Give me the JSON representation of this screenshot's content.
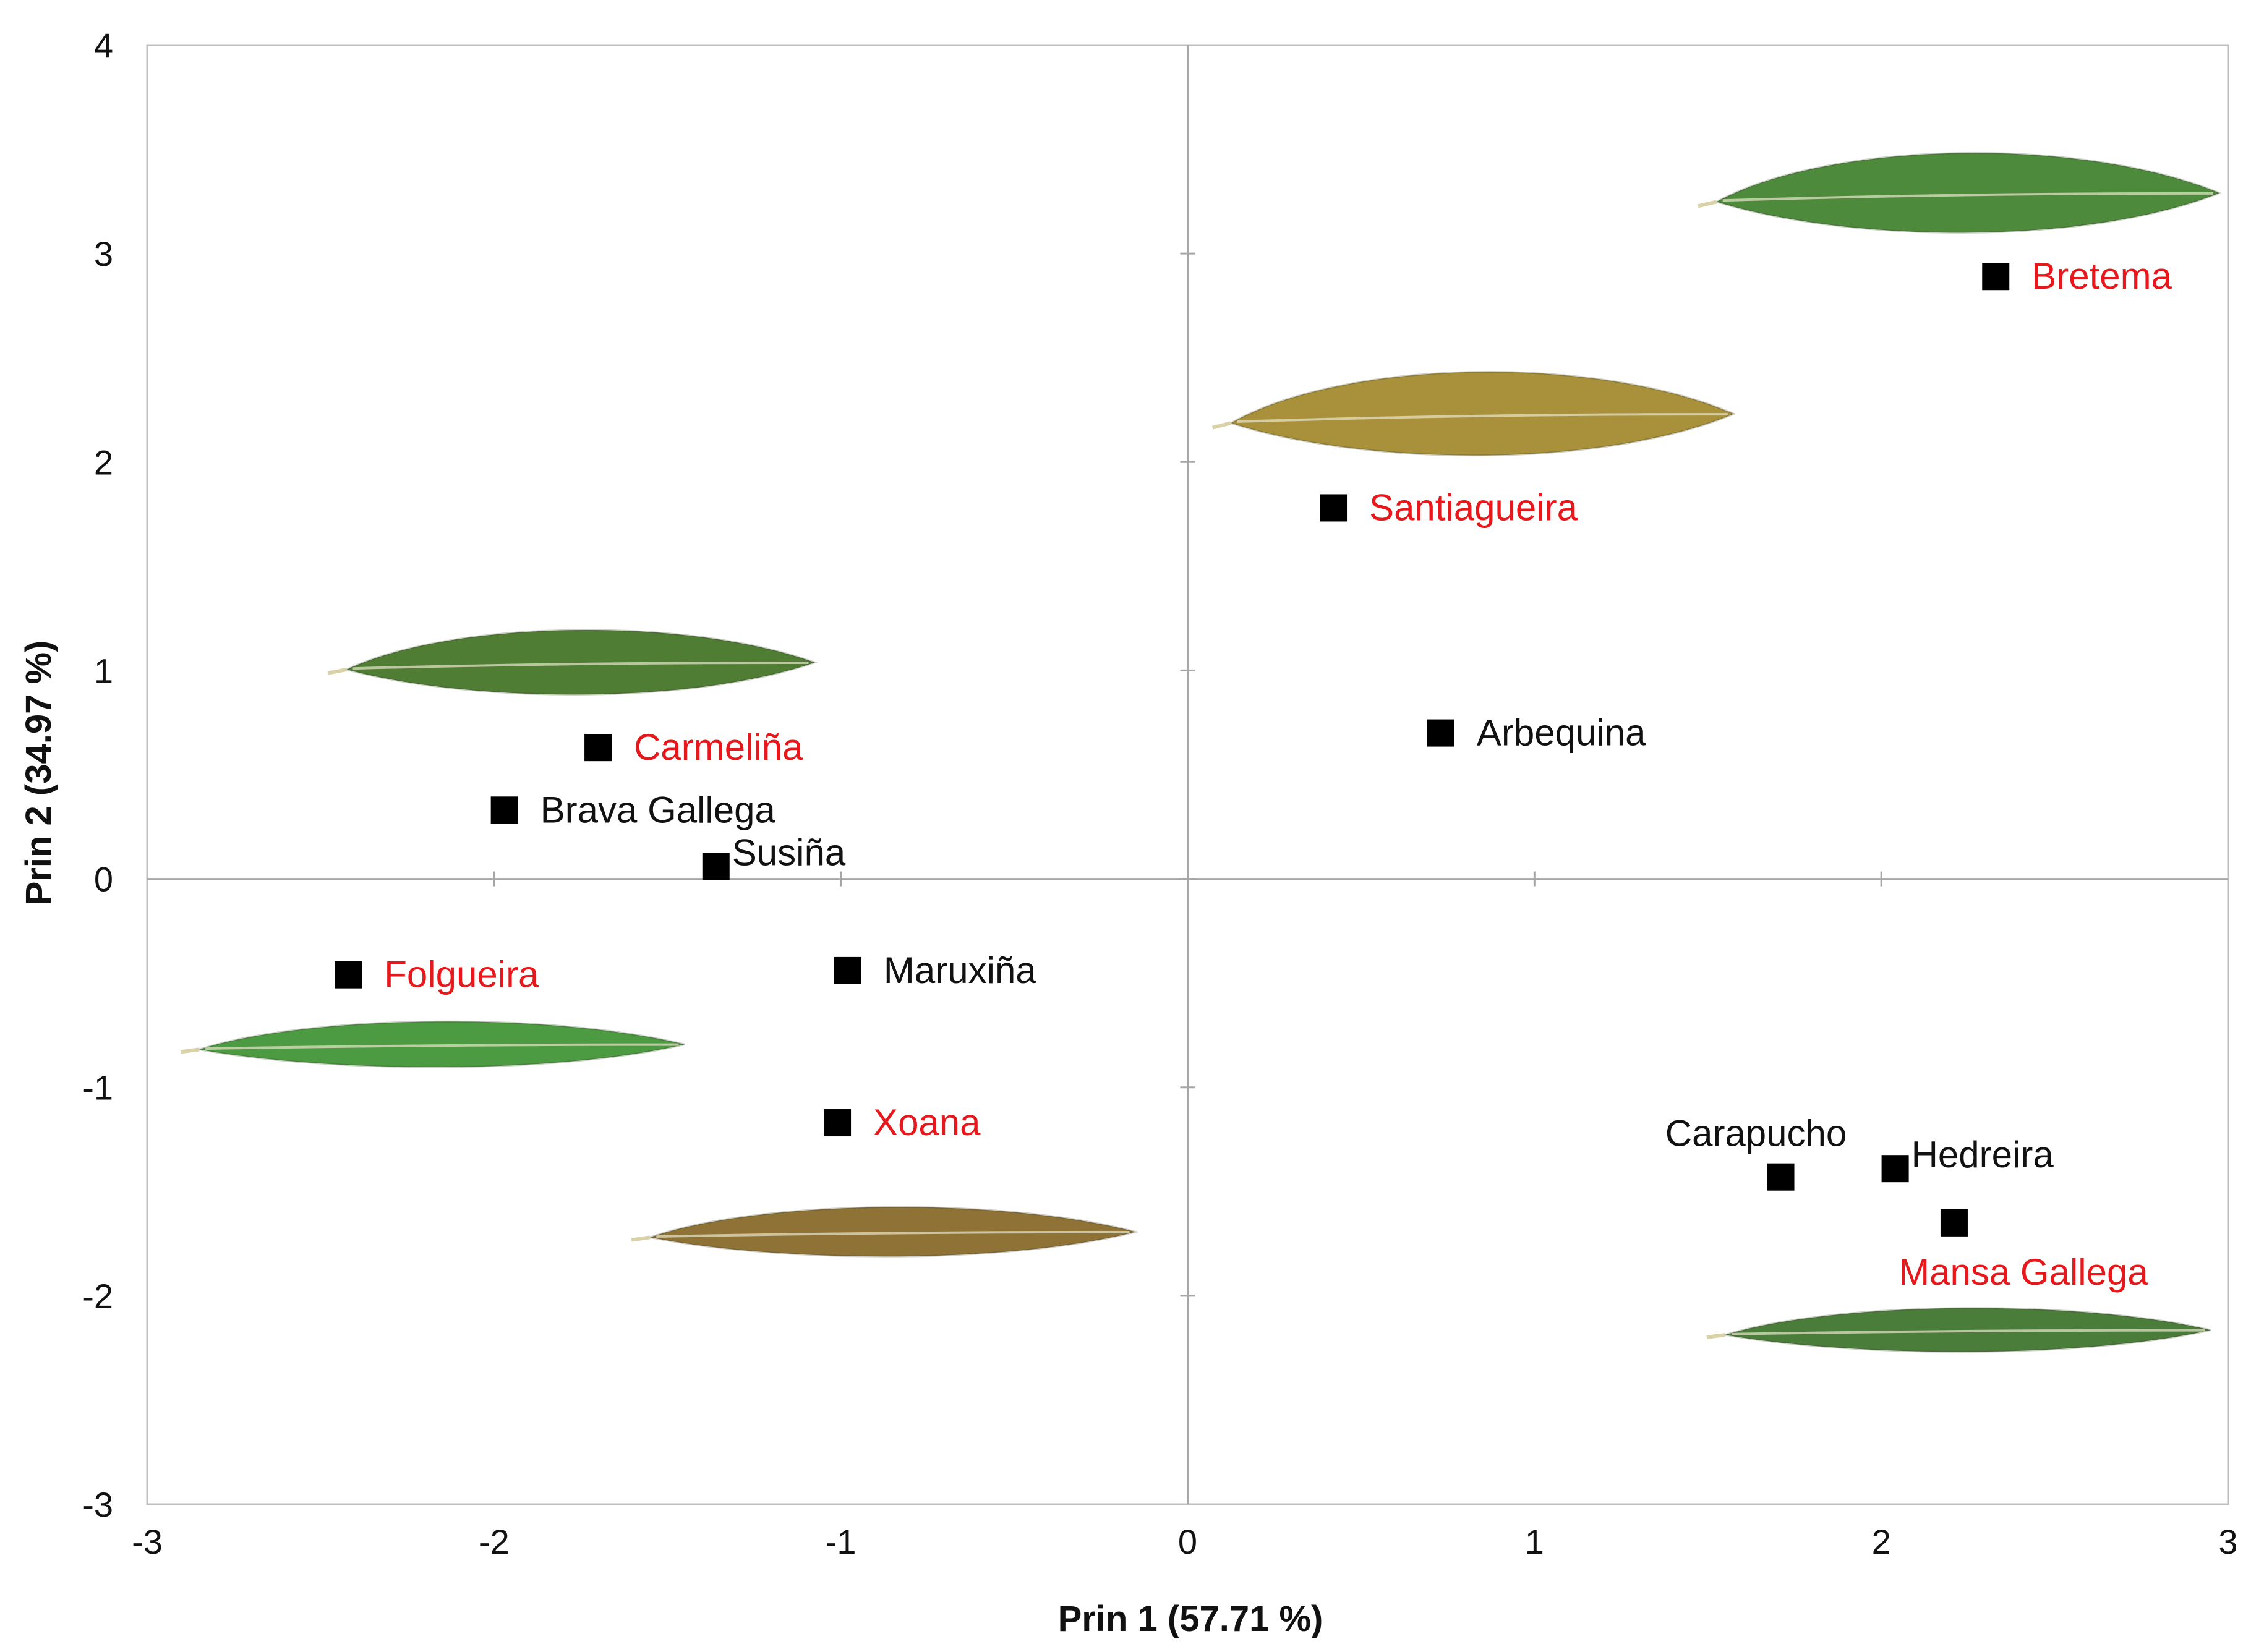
{
  "chart_data": {
    "type": "scatter",
    "title": "",
    "xlabel": "Prin 1 (57.71 %)",
    "ylabel": "Prin 2 (34.97 %)",
    "xlim": [
      -3,
      3
    ],
    "ylim": [
      -3,
      4
    ],
    "x_ticks": [
      "-3",
      "-2",
      "-1",
      "0",
      "1",
      "2",
      "3"
    ],
    "y_ticks": [
      "4",
      "3",
      "2",
      "1",
      "0",
      "-1",
      "-2",
      "-3"
    ],
    "x_tick_values": [
      -3,
      -2,
      -1,
      0,
      1,
      2,
      3
    ],
    "y_tick_values": [
      4,
      3,
      2,
      1,
      0,
      -1,
      -2,
      -3
    ],
    "grid": false,
    "colors": {
      "highlight": "#e8171b",
      "normal": "#111111",
      "marker": "#000000"
    },
    "points": [
      {
        "label": "Bretema",
        "x": 2.33,
        "y": 2.89,
        "highlight": true,
        "label_pos": "right"
      },
      {
        "label": "Santiagueira",
        "x": 0.42,
        "y": 1.78,
        "highlight": true,
        "label_pos": "right"
      },
      {
        "label": "Arbequina",
        "x": 0.73,
        "y": 0.7,
        "highlight": false,
        "label_pos": "right"
      },
      {
        "label": "Carmeliña",
        "x": -1.7,
        "y": 0.63,
        "highlight": true,
        "label_pos": "right"
      },
      {
        "label": "Brava Gallega",
        "x": -1.97,
        "y": 0.33,
        "highlight": false,
        "label_pos": "right"
      },
      {
        "label": "Susiña",
        "x": -1.36,
        "y": 0.06,
        "highlight": false,
        "label_pos": "right-close"
      },
      {
        "label": "Folgueira",
        "x": -2.42,
        "y": -0.46,
        "highlight": true,
        "label_pos": "right"
      },
      {
        "label": "Maruxiña",
        "x": -0.98,
        "y": -0.44,
        "highlight": false,
        "label_pos": "right"
      },
      {
        "label": "Xoana",
        "x": -1.01,
        "y": -1.17,
        "highlight": true,
        "label_pos": "right"
      },
      {
        "label": "Carapucho",
        "x": 1.71,
        "y": -1.43,
        "highlight": false,
        "label_pos": "above"
      },
      {
        "label": "Hedreira",
        "x": 2.04,
        "y": -1.39,
        "highlight": false,
        "label_pos": "right-close"
      },
      {
        "label": "Mansa Gallega",
        "x": 2.21,
        "y": -1.65,
        "highlight": true,
        "label_pos": "below"
      }
    ],
    "leaf_images": [
      {
        "name": "leaf-bretema",
        "color": "#4e8a3c",
        "cx": 2.25,
        "cy": 3.28,
        "len": 1.45,
        "width": 0.42,
        "dir": 1
      },
      {
        "name": "leaf-santiagueira",
        "color": "#a8913a",
        "cx": 0.85,
        "cy": 2.22,
        "len": 1.45,
        "width": 0.44,
        "dir": 1
      },
      {
        "name": "leaf-carmelina",
        "color": "#4f7d34",
        "cx": -1.75,
        "cy": 1.03,
        "len": 1.35,
        "width": 0.34,
        "dir": 1
      },
      {
        "name": "leaf-folgueira",
        "color": "#4c9a42",
        "cx": -2.15,
        "cy": -0.8,
        "len": 1.4,
        "width": 0.24,
        "dir": 1
      },
      {
        "name": "leaf-xoana",
        "color": "#8f7336",
        "cx": -0.85,
        "cy": -1.7,
        "len": 1.4,
        "width": 0.26,
        "dir": 1
      },
      {
        "name": "leaf-mansa-gallega",
        "color": "#4b7d3a",
        "cx": 2.25,
        "cy": -2.17,
        "len": 1.4,
        "width": 0.23,
        "dir": 1
      }
    ]
  }
}
